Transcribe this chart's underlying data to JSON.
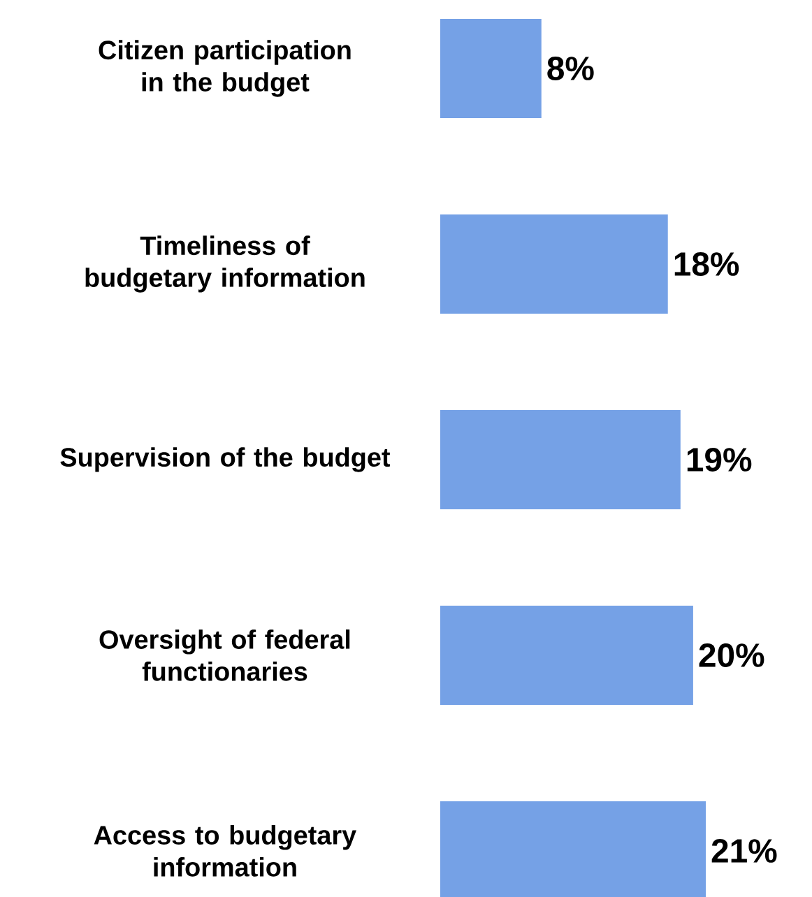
{
  "chart_data": {
    "type": "bar",
    "orientation": "horizontal",
    "categories": [
      "Citizen participation in the budget",
      "Timeliness of budgetary information",
      "Supervision of the budget",
      "Oversight of federal functionaries",
      "Access to budgetary information"
    ],
    "values": [
      8,
      18,
      19,
      20,
      21
    ],
    "value_labels": [
      "8%",
      "18%",
      "19%",
      "20%",
      "21%"
    ],
    "color": "#75a1e6"
  }
}
